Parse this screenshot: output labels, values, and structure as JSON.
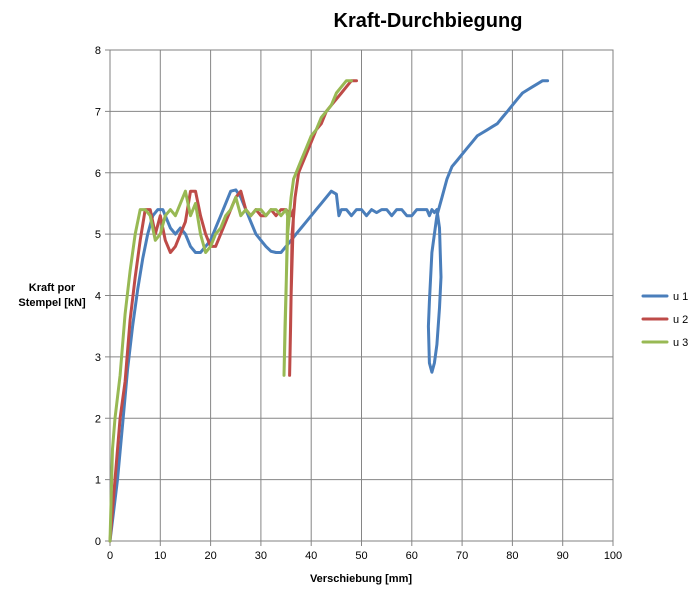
{
  "chart_data": {
    "type": "line",
    "title": "Kraft-Durchbiegung",
    "xlabel": "Verschiebung [mm]",
    "ylabel": [
      "Kraft por",
      "Stempel [kN]"
    ],
    "xlim": [
      0,
      100
    ],
    "ylim": [
      0,
      8
    ],
    "xticks": [
      "0",
      "10",
      "20",
      "30",
      "40",
      "50",
      "60",
      "70",
      "80",
      "90",
      "100"
    ],
    "yticks": [
      "0",
      "1",
      "2",
      "3",
      "4",
      "5",
      "6",
      "7",
      "8"
    ],
    "grid": true,
    "legend_position": "right",
    "series": [
      {
        "name": "u 1",
        "color": "#4a7ebb",
        "x": [
          0,
          1.5,
          2.5,
          3.5,
          4.5,
          5.5,
          6.5,
          7.5,
          8.5,
          9.5,
          10.5,
          11,
          12,
          13,
          14,
          15,
          16,
          17,
          18,
          19,
          20,
          21,
          22,
          23,
          24,
          25,
          26,
          27,
          28,
          29,
          30,
          31,
          32,
          33,
          34,
          35,
          36,
          37,
          38,
          39,
          40,
          41,
          42,
          43,
          44,
          45,
          45.5,
          46,
          47,
          48,
          49,
          50,
          51,
          52,
          53,
          54,
          55,
          56,
          57,
          58,
          59,
          60,
          61,
          62,
          63,
          63.5,
          64,
          64.5,
          65,
          65.5,
          65.8,
          65.5,
          65,
          64.5,
          64,
          63.5,
          63.3,
          63.5,
          64,
          65,
          66,
          67,
          68,
          69,
          70,
          71,
          72,
          73,
          74,
          75,
          76,
          77,
          78,
          79,
          80,
          81,
          82,
          83,
          84,
          85,
          86,
          87
        ],
        "y": [
          0,
          1,
          1.9,
          2.8,
          3.5,
          4.1,
          4.6,
          5.0,
          5.3,
          5.4,
          5.4,
          5.3,
          5.1,
          5.0,
          5.1,
          5.0,
          4.8,
          4.7,
          4.7,
          4.8,
          4.9,
          5.1,
          5.3,
          5.5,
          5.7,
          5.72,
          5.6,
          5.4,
          5.2,
          5.0,
          4.9,
          4.8,
          4.72,
          4.7,
          4.7,
          4.8,
          4.9,
          5.0,
          5.1,
          5.2,
          5.3,
          5.4,
          5.5,
          5.6,
          5.7,
          5.65,
          5.3,
          5.4,
          5.4,
          5.3,
          5.4,
          5.4,
          5.3,
          5.4,
          5.35,
          5.4,
          5.4,
          5.3,
          5.4,
          5.4,
          5.3,
          5.3,
          5.4,
          5.4,
          5.4,
          5.3,
          5.4,
          5.35,
          5.4,
          5.1,
          4.3,
          3.8,
          3.2,
          2.9,
          2.75,
          2.9,
          3.5,
          3.9,
          4.7,
          5.3,
          5.6,
          5.9,
          6.1,
          6.2,
          6.3,
          6.4,
          6.5,
          6.6,
          6.65,
          6.7,
          6.75,
          6.8,
          6.9,
          7.0,
          7.1,
          7.2,
          7.3,
          7.35,
          7.4,
          7.45,
          7.5,
          7.5
        ]
      },
      {
        "name": "u 2",
        "color": "#be4b48",
        "x": [
          0,
          1,
          2,
          3,
          4,
          5,
          6,
          7,
          8,
          9,
          10,
          11,
          12,
          13,
          14,
          15,
          16,
          17,
          18,
          19,
          20,
          21,
          22,
          23,
          24,
          25,
          26,
          27,
          28,
          29,
          30,
          31,
          32,
          33,
          34,
          35,
          36,
          36.5,
          36,
          35.7,
          35.9,
          36.2,
          36.8,
          37.5,
          38,
          39,
          40,
          41,
          42,
          43,
          44,
          45,
          46,
          47,
          48,
          49
        ],
        "y": [
          0,
          1.0,
          2.0,
          2.6,
          3.6,
          4.3,
          4.9,
          5.4,
          5.4,
          5.0,
          5.3,
          4.9,
          4.7,
          4.8,
          5.0,
          5.2,
          5.7,
          5.7,
          5.3,
          5.0,
          4.8,
          4.8,
          5.0,
          5.2,
          5.4,
          5.6,
          5.7,
          5.4,
          5.3,
          5.4,
          5.3,
          5.3,
          5.4,
          5.3,
          5.4,
          5.4,
          5.3,
          5.4,
          4.0,
          2.7,
          3.5,
          5.0,
          5.6,
          6.0,
          6.1,
          6.3,
          6.5,
          6.7,
          6.8,
          7.0,
          7.1,
          7.2,
          7.3,
          7.4,
          7.5,
          7.5
        ]
      },
      {
        "name": "u 3",
        "color": "#98b954",
        "x": [
          0,
          0.5,
          1,
          2,
          3,
          4,
          5,
          6,
          7,
          8,
          9,
          10,
          11,
          12,
          13,
          14,
          15,
          16,
          17,
          18,
          19,
          20,
          21,
          22,
          23,
          24,
          25,
          26,
          27,
          28,
          29,
          30,
          31,
          32,
          33,
          34,
          35,
          35.3,
          35,
          34.6,
          34.8,
          35.3,
          36,
          36.5,
          37,
          38,
          39,
          40,
          41,
          42,
          43,
          44,
          45,
          46,
          47,
          48
        ],
        "y": [
          0,
          1.5,
          2.0,
          2.7,
          3.7,
          4.4,
          5.0,
          5.4,
          5.4,
          5.3,
          4.9,
          5.0,
          5.3,
          5.4,
          5.3,
          5.5,
          5.7,
          5.3,
          5.5,
          5.0,
          4.7,
          4.8,
          5.0,
          5.1,
          5.3,
          5.4,
          5.6,
          5.3,
          5.4,
          5.3,
          5.4,
          5.4,
          5.3,
          5.4,
          5.4,
          5.3,
          5.4,
          5.3,
          4.0,
          2.7,
          3.5,
          5.0,
          5.6,
          5.9,
          6.0,
          6.2,
          6.4,
          6.6,
          6.7,
          6.9,
          7.0,
          7.1,
          7.3,
          7.4,
          7.5,
          7.5
        ]
      }
    ]
  }
}
